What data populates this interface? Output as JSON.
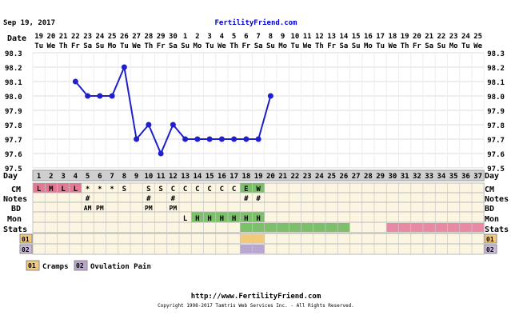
{
  "header": {
    "date": "Sep 19, 2017",
    "site": "FertilityFriend.com"
  },
  "footer": {
    "url": "http://www.FertilityFriend.com",
    "copyright": "Copyright 1998-2017 Tamtris Web Services Inc. - All Rights Reserved."
  },
  "legend": [
    {
      "code": "01",
      "label": "Cramps",
      "color": "#f3c97a"
    },
    {
      "code": "02",
      "label": "Ovulation Pain",
      "color": "#b9a6cf"
    }
  ],
  "row_labels": {
    "date": "Date",
    "day": "Day",
    "cm": "CM",
    "notes": "Notes",
    "bd": "BD",
    "mon": "Mon",
    "stats": "Stats",
    "r01": "01",
    "r02": "02"
  },
  "colors": {
    "line": "#1f1fcc",
    "period": "#e07a95",
    "green": "#7cc06b",
    "pink": "#e88aa5",
    "cream": "#fbf5e2",
    "grid": "#c8c8c8",
    "egg": "#7cc06b",
    "link": "#0000cc",
    "stats_label_bg": "#d9c8a4",
    "r02_label_bg": "#c8b9dd"
  },
  "chart_data": {
    "type": "line",
    "ylabel": "",
    "ylim": [
      97.5,
      98.3
    ],
    "yticks": [
      "98.3",
      "98.2",
      "98.1",
      "98.0",
      "97.9",
      "97.8",
      "97.7",
      "97.6",
      "97.5"
    ],
    "dates": [
      "19",
      "20",
      "21",
      "22",
      "23",
      "24",
      "25",
      "26",
      "27",
      "28",
      "29",
      "30",
      "1",
      "2",
      "3",
      "4",
      "5",
      "6",
      "7",
      "8",
      "9",
      "10",
      "11",
      "12",
      "13",
      "14",
      "15",
      "16",
      "17",
      "18",
      "19",
      "20",
      "21",
      "22",
      "23",
      "24",
      "25"
    ],
    "weekdays": [
      "Tu",
      "We",
      "Th",
      "Fr",
      "Sa",
      "Su",
      "Mo",
      "Tu",
      "We",
      "Th",
      "Fr",
      "Sa",
      "Su",
      "Mo",
      "Tu",
      "We",
      "Th",
      "Fr",
      "Sa",
      "Su",
      "Mo",
      "Tu",
      "We",
      "Th",
      "Fr",
      "Sa",
      "Su",
      "Mo",
      "Tu",
      "We",
      "Th",
      "Fr",
      "Sa",
      "Su",
      "Mo",
      "Tu",
      "We"
    ],
    "cycle_days": [
      "1",
      "2",
      "3",
      "4",
      "5",
      "6",
      "7",
      "8",
      "9",
      "10",
      "11",
      "12",
      "13",
      "14",
      "15",
      "16",
      "17",
      "18",
      "19",
      "20",
      "21",
      "22",
      "23",
      "24",
      "25",
      "26",
      "27",
      "28",
      "29",
      "30",
      "31",
      "32",
      "33",
      "34",
      "35",
      "36",
      "37"
    ],
    "series": [
      {
        "x": [
          4,
          5,
          6,
          7,
          8,
          9,
          10,
          11,
          12,
          13,
          14,
          15,
          16,
          17,
          18,
          19,
          20
        ],
        "y": [
          98.1,
          98.0,
          98.0,
          98.0,
          98.2,
          97.7,
          97.8,
          97.6,
          97.8,
          97.7,
          97.7,
          97.7,
          97.7,
          97.7,
          97.7,
          97.7,
          98.0
        ]
      }
    ],
    "cm": [
      {
        "day": 1,
        "v": "L",
        "bg": "period"
      },
      {
        "day": 2,
        "v": "M",
        "bg": "period"
      },
      {
        "day": 3,
        "v": "L",
        "bg": "period"
      },
      {
        "day": 4,
        "v": "L",
        "bg": "period"
      },
      {
        "day": 5,
        "v": "*"
      },
      {
        "day": 6,
        "v": "*"
      },
      {
        "day": 7,
        "v": "*"
      },
      {
        "day": 8,
        "v": "S"
      },
      {
        "day": 10,
        "v": "S"
      },
      {
        "day": 11,
        "v": "S"
      },
      {
        "day": 12,
        "v": "C"
      },
      {
        "day": 13,
        "v": "C"
      },
      {
        "day": 14,
        "v": "C"
      },
      {
        "day": 15,
        "v": "C"
      },
      {
        "day": 16,
        "v": "C"
      },
      {
        "day": 17,
        "v": "C"
      },
      {
        "day": 18,
        "v": "E",
        "bg": "egg"
      },
      {
        "day": 19,
        "v": "W",
        "bg": "egg"
      }
    ],
    "notes": [
      {
        "day": 5,
        "v": "#"
      },
      {
        "day": 10,
        "v": "#"
      },
      {
        "day": 12,
        "v": "#"
      },
      {
        "day": 18,
        "v": "#"
      },
      {
        "day": 19,
        "v": "#"
      }
    ],
    "bd": [
      {
        "day": 5,
        "v": "AM"
      },
      {
        "day": 6,
        "v": "PM"
      },
      {
        "day": 10,
        "v": "PM"
      },
      {
        "day": 12,
        "v": "PM"
      }
    ],
    "mon": [
      {
        "day": 13,
        "v": "L"
      },
      {
        "day": 14,
        "v": "H",
        "bg": "green"
      },
      {
        "day": 15,
        "v": "H",
        "bg": "green"
      },
      {
        "day": 16,
        "v": "H",
        "bg": "green"
      },
      {
        "day": 17,
        "v": "H",
        "bg": "green"
      },
      {
        "day": 18,
        "v": "H",
        "bg": "green"
      },
      {
        "day": 19,
        "v": "H",
        "bg": "green"
      }
    ],
    "stats": [
      {
        "from": 18,
        "to": 26,
        "color": "green"
      },
      {
        "from": 30,
        "to": 37,
        "color": "pink"
      }
    ],
    "r01": [
      {
        "from": 18,
        "to": 19,
        "color": "#f3c97a"
      }
    ],
    "r02": [
      {
        "from": 18,
        "to": 19,
        "color": "#b9a6cf"
      }
    ]
  }
}
